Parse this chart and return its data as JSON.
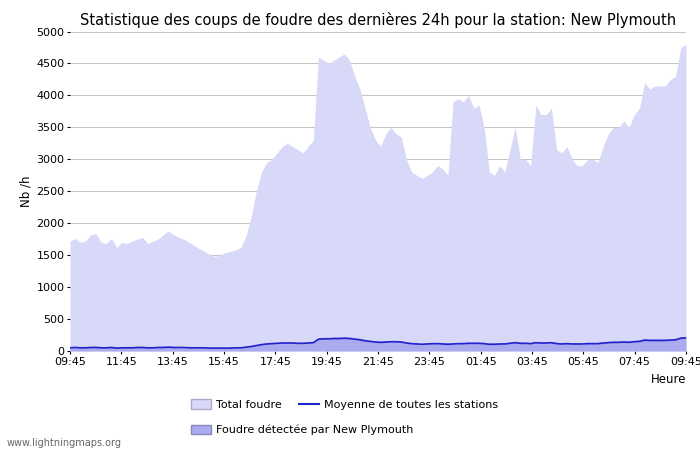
{
  "title": "Statistique des coups de foudre des dernières 24h pour la station: New Plymouth",
  "xlabel": "Heure",
  "ylabel": "Nb /h",
  "ylim": [
    0,
    5000
  ],
  "yticks": [
    0,
    500,
    1000,
    1500,
    2000,
    2500,
    3000,
    3500,
    4000,
    4500,
    5000
  ],
  "xtick_labels": [
    "09:45",
    "11:45",
    "13:45",
    "15:45",
    "17:45",
    "19:45",
    "21:45",
    "23:45",
    "01:45",
    "03:45",
    "05:45",
    "07:45",
    "09:45"
  ],
  "watermark": "www.lightningmaps.org",
  "legend_labels": [
    "Total foudre",
    "Moyenne de toutes les stations",
    "Foudre détectée par New Plymouth"
  ],
  "total_foudre": [
    1720,
    1760,
    1700,
    1720,
    1820,
    1840,
    1700,
    1680,
    1760,
    1620,
    1700,
    1680,
    1720,
    1750,
    1780,
    1680,
    1720,
    1750,
    1820,
    1880,
    1820,
    1780,
    1750,
    1700,
    1650,
    1600,
    1560,
    1510,
    1480,
    1500,
    1540,
    1560,
    1580,
    1620,
    1800,
    2100,
    2500,
    2800,
    2950,
    3000,
    3100,
    3200,
    3250,
    3200,
    3150,
    3100,
    3200,
    3300,
    4600,
    4550,
    4500,
    4550,
    4600,
    4650,
    4550,
    4300,
    4100,
    3800,
    3500,
    3300,
    3200,
    3400,
    3500,
    3400,
    3350,
    3000,
    2800,
    2750,
    2700,
    2750,
    2800,
    2900,
    2850,
    2750,
    3900,
    3950,
    3900,
    4000,
    3800,
    3850,
    3500,
    2800,
    2750,
    2900,
    2800,
    3150,
    3500,
    3000,
    3000,
    2900,
    3850,
    3700,
    3700,
    3800,
    3150,
    3100,
    3200,
    3000,
    2900,
    2900,
    3000,
    3000,
    2950,
    3200,
    3400,
    3500,
    3500,
    3600,
    3500,
    3700,
    3800,
    4200,
    4100,
    4150,
    4150,
    4150,
    4250,
    4300,
    4750,
    4800
  ],
  "moyenne": [
    50,
    55,
    50,
    50,
    55,
    55,
    50,
    50,
    55,
    45,
    50,
    50,
    50,
    55,
    55,
    50,
    50,
    55,
    55,
    60,
    55,
    55,
    55,
    50,
    50,
    50,
    50,
    45,
    45,
    45,
    45,
    45,
    50,
    50,
    60,
    70,
    85,
    100,
    110,
    115,
    120,
    125,
    125,
    125,
    120,
    120,
    125,
    130,
    185,
    190,
    190,
    195,
    195,
    200,
    195,
    185,
    175,
    160,
    150,
    140,
    135,
    140,
    145,
    145,
    140,
    125,
    115,
    110,
    105,
    110,
    115,
    115,
    110,
    105,
    110,
    115,
    115,
    120,
    120,
    120,
    115,
    105,
    105,
    110,
    110,
    120,
    130,
    120,
    120,
    115,
    130,
    125,
    125,
    130,
    115,
    110,
    115,
    110,
    110,
    110,
    115,
    115,
    115,
    125,
    130,
    135,
    135,
    140,
    135,
    145,
    150,
    170,
    165,
    165,
    165,
    165,
    170,
    175,
    200,
    205
  ],
  "foudre_NP": [
    70,
    75,
    70,
    70,
    75,
    78,
    70,
    70,
    75,
    65,
    70,
    68,
    70,
    72,
    74,
    68,
    70,
    72,
    75,
    78,
    75,
    72,
    70,
    68,
    65,
    63,
    60,
    58,
    57,
    58,
    60,
    62,
    63,
    65,
    72,
    85,
    100,
    115,
    125,
    130,
    135,
    140,
    142,
    140,
    138,
    135,
    140,
    145,
    210,
    215,
    215,
    220,
    220,
    225,
    220,
    210,
    200,
    185,
    170,
    160,
    155,
    160,
    165,
    160,
    158,
    140,
    130,
    125,
    120,
    125,
    130,
    135,
    130,
    125,
    130,
    135,
    135,
    140,
    140,
    140,
    135,
    125,
    125,
    130,
    130,
    140,
    155,
    140,
    140,
    135,
    150,
    145,
    145,
    150,
    135,
    130,
    135,
    130,
    130,
    130,
    135,
    135,
    135,
    145,
    155,
    160,
    160,
    165,
    160,
    170,
    175,
    195,
    190,
    190,
    190,
    190,
    195,
    200,
    225,
    230
  ],
  "fill_color_total": "#d8d8f8",
  "fill_color_NP": "#aaaaee",
  "line_color_moyenne": "#2222cc",
  "bg_color": "#ffffff",
  "grid_color": "#bbbbbb",
  "title_fontsize": 10.5,
  "tick_fontsize": 8,
  "label_fontsize": 8.5
}
